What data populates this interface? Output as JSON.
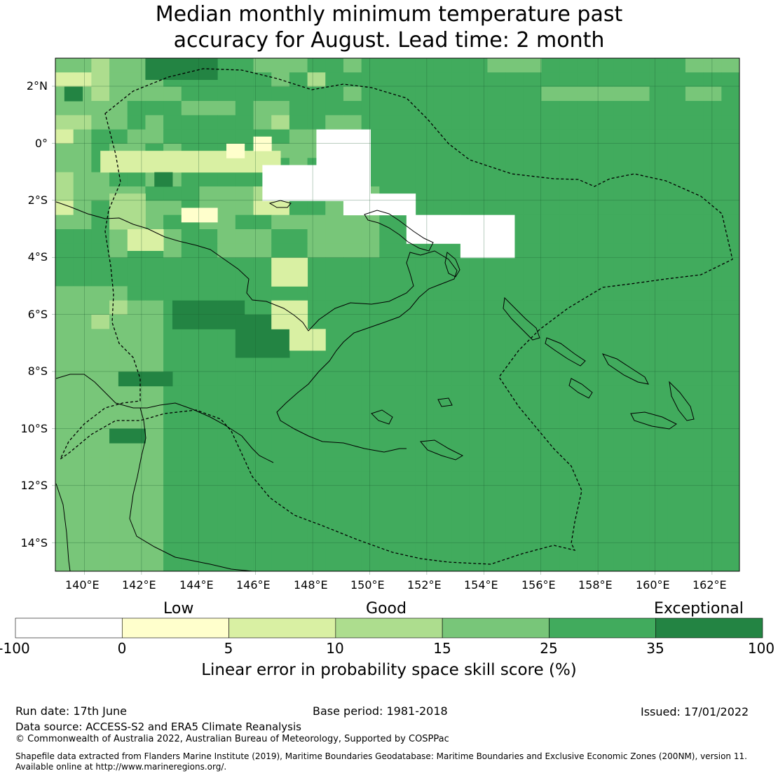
{
  "title": {
    "line1": "Median monthly minimum temperature past",
    "line2": "accuracy for August. Lead time: 2 month"
  },
  "map": {
    "lon_ticks": [
      "140°E",
      "142°E",
      "144°E",
      "146°E",
      "148°E",
      "150°E",
      "152°E",
      "154°E",
      "156°E",
      "158°E",
      "160°E",
      "162°E"
    ],
    "lat_ticks": [
      "2°N",
      "0°",
      "2°S",
      "4°S",
      "6°S",
      "8°S",
      "10°S",
      "12°S",
      "14°S"
    ],
    "grid_rows": [
      "CCBCCDDDDEEDCCFFCEEEEEEECCCEEEEEEEECCC",
      "AABDDCEEFEEFDEBFFEEEEEEEEEEEEEEEEEEEEE",
      "DCBDCDDEEEEEFEEEDEEEEEEEEEEDDDDDDEEDDE",
      "DDCDEEECCCEDCEEFEEEEEEEEEEEFEEEEEEEEEE",
      "BBCCECEEEEEDBEEDDEEEEEEEEEEEEEEEEEEEEE",
      "ACEEDDEEFFEFFCDFFEEEEEEEEEEEEEEEEEEEEE",
      "DDEDCFDEEEEDCCCFFEEEEEEEEEEEEEEEEEEEEE",
      "CDEEDDEEEEEEEDFEEEEEEEEEEFFEEEEEEEEEEE",
      "BDDEEDDEEEEECEDDEEEEEEEEEEEEEEEEEEEEEE",
      "BDCDCEEECCCBBCCDDCEEEEEEEEFEEEEEEEEEEE",
      "ACEEEDCECCCAAEEDDDEEEEEEEEEEEEEEEEEEEE",
      "CDEEDDEEDDEEDDDDCDEEEEEEEEEEEEEEEEEEEE",
      "EEFCEFDFFDDDEEDDCCEEEEEEEEEEEEEEEEEEEE",
      "EEFCEFDFFDDDEEDDDCEEEEEEEEEEEEEEEEEEEE",
      "FFFFFFFFEEEEEEEEEEEEEEEEEEEEEEEEEEEEEE",
      "FFFFFFFFEEEEEEEEEEEEEEEEEEEEEEEEEEEEEE",
      "DDDDEEEEEEEEEEEEEEEEEEEEEEEEEEEEEEEEEE",
      "DDDBDDEEEEEEEEEEEEEEEEEEEEEEEEEEEEEEEE",
      "DDBDDDEEEEEEEEEEEEEEEEEEEEEEEEEEEEEEEE",
      "DDDDDDEEEEEEEEEEEEEEEEEEEEEEEEEEEEEEEE",
      "DDDDDDEEEEEEEEEEEEEEEEEEEEEEEEEEEEEEEE",
      "DDDDDDEEEEEEEEEEEEEEEEEEEEEEEEEEEEEEEE",
      "DDDDDDEEEEEEEEEEEEEEEEEEEEEEEEEEEEEEEE",
      "DDDDDDEEEEEEEEEEEEEEEEEEEEEEEEEEEEEEEE",
      "DDDDDDEEEEEEEEEEEEEEEEEEEEEEEEEEEEEEEE",
      "DDDDDDEEEEEEEEEEEEEEEEEEEEEEEEEEEEEEEE",
      "DDDDDDEEEEEEEEEEEEEEEEEEEEEEEEEEEEEEEE",
      "DDDDDDEEEEEEEEEEEEEEEEEEEEEEEEEEEEEEEE",
      "DDDDDDEEEEEEEEEEEEEEEEEEEEEEEEEEEEEEEE",
      "DDDDDDEEEEEEEEEEEEEEEEEEEEEEEEEEEEEEEE",
      "DDDDDDEEEEEEEEEEEEEEEEEEEEEEEEEEEEEEEE",
      "DDDDDDEEEEEEEEEEEEEEEEEEEEEEEEEEEEEEEE",
      "DDDDDDEEEEEEEEEEEEEEEEEEEEEEEEEEEEEEEE",
      "DDDDDDEEEEEEEEEEEEEEEEEEEEEEEEEEEEEEEE",
      "DDDDDDEEEEEEEEEEEEEEEEEEEEEEEEEEEEEEEE",
      "DDDDDDEEEEEEEEEEEEEEEEEEEEEEEEEEEEEEEE"
    ],
    "grid_patches": [
      [
        "A",
        6.5,
        2.5,
        10,
        1.5
      ],
      [
        "G",
        2,
        0.5,
        1,
        1
      ],
      [
        "G",
        8,
        5.5,
        1,
        1
      ],
      [
        "G",
        0,
        5,
        4,
        1.5
      ],
      [
        "B",
        9.5,
        3,
        2,
        2.5
      ],
      [
        "A",
        12,
        4,
        2,
        1.5
      ],
      [
        "G",
        17,
        6.5,
        4,
        2
      ],
      [
        "G",
        18,
        10,
        3,
        3
      ],
      [
        "G",
        22,
        3.5,
        3,
        1
      ],
      [
        "G",
        26,
        3,
        2,
        1
      ],
      [
        "A",
        14,
        12,
        2,
        2
      ],
      [
        "A",
        17,
        12,
        2,
        2
      ],
      [
        "A",
        19,
        13,
        2,
        1.5
      ]
    ],
    "white_patches": [
      [
        7.5,
        11.5,
        6,
        2.5
      ],
      [
        5,
        14.5,
        3,
        2.5
      ],
      [
        9.5,
        16,
        4,
        1.5
      ],
      [
        11,
        19.5,
        3,
        2
      ],
      [
        11,
        22.5,
        3,
        3
      ]
    ],
    "yellow_patches": [
      [
        10.5,
        7,
        2,
        1
      ],
      [
        5.5,
        11,
        1,
        1
      ],
      [
        6,
        9.5,
        1,
        1
      ],
      [
        9.5,
        16.5,
        1,
        1
      ]
    ]
  },
  "legend": {
    "categories": [
      "Low",
      "Good",
      "Exceptional"
    ],
    "colors": [
      "#ffffff",
      "#ffffcc",
      "#d9f0a3",
      "#addd8e",
      "#78c679",
      "#41ab5d",
      "#238443"
    ],
    "ticks": [
      "-100",
      "0",
      "5",
      "10",
      "15",
      "25",
      "35",
      "100"
    ],
    "label": "Linear error in probability space skill score (%)"
  },
  "footer": {
    "run_date": "Run date: 17th June",
    "base_period": "Base period: 1981-2018",
    "issued": "Issued: 17/01/2022",
    "data_source": "Data source: ACCESS-S2 and ERA5 Climate Reanalysis",
    "copyright": "© Commonwealth of Australia 2022, Australian Bureau of Meteorology, Supported by COSPPac",
    "shapefile_1": "Shapefile data extracted from Flanders Marine Institute (2019), Maritime Boundaries Geodatabase: Maritime Boundaries and Exclusive Economic Zones (200NM), version 11.",
    "shapefile_2": "Available online at http://www.marineregions.org/."
  }
}
